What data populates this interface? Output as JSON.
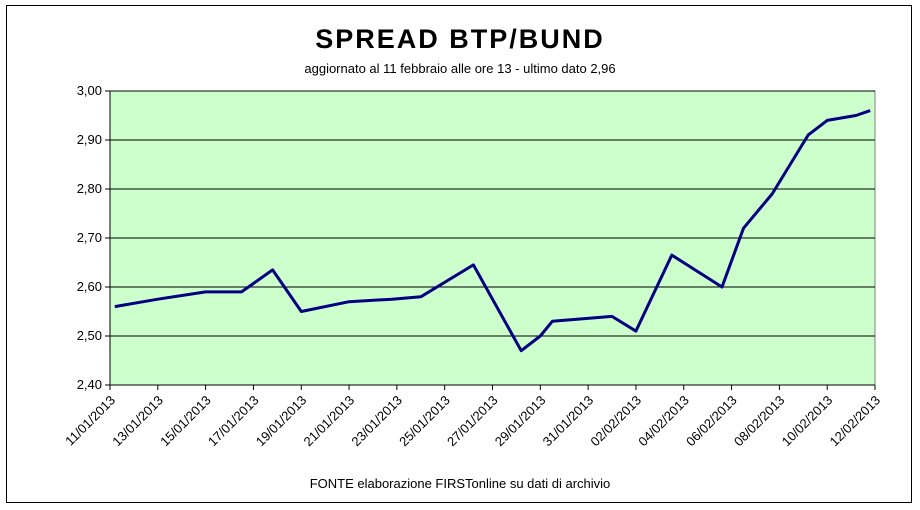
{
  "chart_data": {
    "type": "line",
    "title": "SPREAD  BTP/BUND",
    "subtitle": "aggiornato al 11 febbraio alle ore 13 - ultimo dato 2,96",
    "source": "FONTE elaborazione FIRSTonline su dati di archivio",
    "xlabel": "",
    "ylabel": "",
    "ylim": [
      2.4,
      3.0
    ],
    "yticks": [
      "3,00",
      "2,90",
      "2,80",
      "2,70",
      "2,60",
      "2,50",
      "2,40"
    ],
    "ytick_values": [
      3.0,
      2.9,
      2.8,
      2.7,
      2.6,
      2.5,
      2.4
    ],
    "xticks": [
      "11/01/2013",
      "13/01/2013",
      "15/01/2013",
      "17/01/2013",
      "19/01/2013",
      "21/01/2013",
      "23/01/2013",
      "25/01/2013",
      "27/01/2013",
      "29/01/2013",
      "31/01/2013",
      "02/02/2013",
      "04/02/2013",
      "06/02/2013",
      "08/02/2013",
      "10/02/2013",
      "12/02/2013"
    ],
    "xlim_days": [
      0,
      32
    ],
    "grid": true,
    "plot_background": "#ccffcc",
    "line_color": "#000080",
    "series": [
      {
        "x_days": [
          0.2,
          2,
          4,
          5.5,
          6.8,
          8,
          10,
          11.8,
          13,
          15.2,
          17.2,
          18,
          18.5,
          21,
          22,
          23.5,
          25.6,
          26.5,
          27.7,
          29.2,
          30,
          31.2,
          31.8
        ],
        "values": [
          2.56,
          2.575,
          2.59,
          2.59,
          2.635,
          2.55,
          2.57,
          2.575,
          2.58,
          2.645,
          2.47,
          2.5,
          2.53,
          2.54,
          2.51,
          2.665,
          2.6,
          2.72,
          2.79,
          2.91,
          2.94,
          2.95,
          2.96
        ]
      }
    ]
  }
}
